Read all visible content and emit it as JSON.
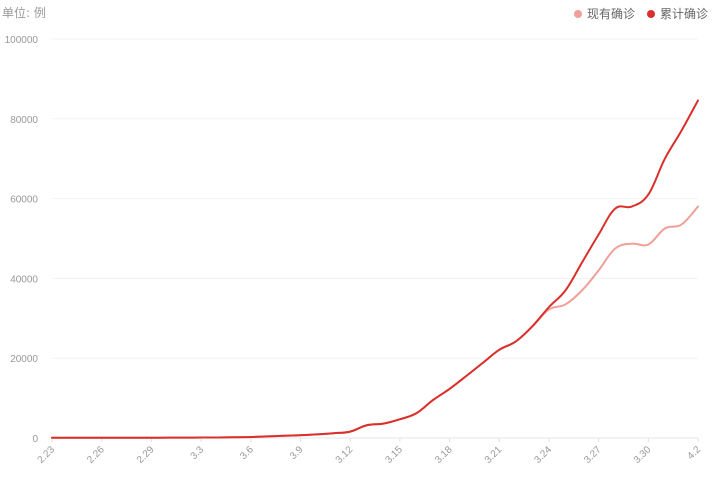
{
  "chart_data": {
    "type": "line",
    "unit_label": "单位: 例",
    "legend_placement": "top-right",
    "x": [
      "2.23",
      "2.24",
      "2.25",
      "2.26",
      "2.27",
      "2.28",
      "2.29",
      "3.1",
      "3.2",
      "3.3",
      "3.4",
      "3.5",
      "3.6",
      "3.7",
      "3.8",
      "3.9",
      "3.10",
      "3.11",
      "3.12",
      "3.13",
      "3.14",
      "3.15",
      "3.16",
      "3.17",
      "3.18",
      "3.19",
      "3.20",
      "3.21",
      "3.22",
      "3.23",
      "3.24",
      "3.25",
      "3.26",
      "3.27",
      "3.28",
      "3.29",
      "3.30",
      "3.31",
      "4.1",
      "4.2"
    ],
    "x_tick_labels": [
      "2.23",
      "2.26",
      "2.29",
      "3.3",
      "3.6",
      "3.9",
      "3.12",
      "3.15",
      "3.18",
      "3.21",
      "3.24",
      "3.27",
      "3.30",
      "4.2"
    ],
    "ylim": [
      0,
      100000
    ],
    "y_ticks": [
      0,
      20000,
      40000,
      60000,
      80000,
      100000
    ],
    "grid": true,
    "series": [
      {
        "name": "现有确诊",
        "color": "#f0a098",
        "values": [
          50,
          50,
          50,
          50,
          60,
          60,
          70,
          80,
          100,
          110,
          130,
          180,
          250,
          400,
          550,
          700,
          900,
          1200,
          1600,
          3200,
          3600,
          4700,
          6200,
          9500,
          12300,
          15500,
          18800,
          22100,
          24200,
          28000,
          32200,
          33500,
          37000,
          42000,
          47500,
          48700,
          48500,
          52500,
          53500,
          58000
        ]
      },
      {
        "name": "累计确诊",
        "color": "#d9302b",
        "values": [
          50,
          50,
          50,
          50,
          60,
          60,
          70,
          80,
          100,
          110,
          130,
          180,
          250,
          400,
          550,
          700,
          900,
          1200,
          1600,
          3200,
          3600,
          4700,
          6200,
          9500,
          12300,
          15500,
          18800,
          22100,
          24200,
          28000,
          32800,
          37000,
          44000,
          51000,
          57500,
          58000,
          61000,
          70000,
          77000,
          84600
        ]
      }
    ]
  }
}
